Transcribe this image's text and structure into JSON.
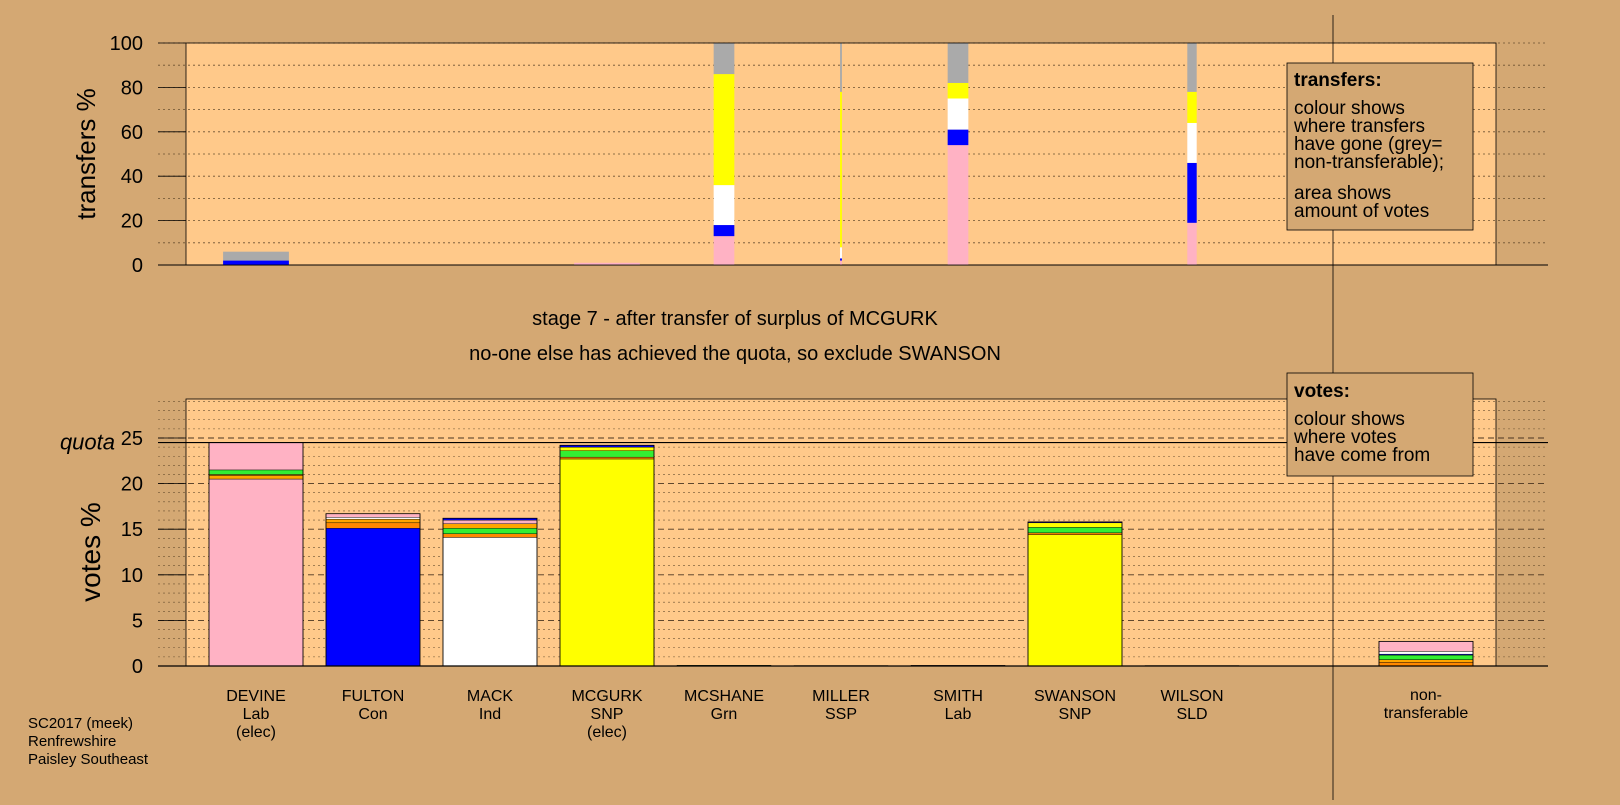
{
  "colors": {
    "page_bg": "#d4a873",
    "plot_bg": "#ffc98a",
    "Lab": "#ffb2c4",
    "Con": "#0000ff",
    "Ind": "#ffffff",
    "SNP": "#ffff00",
    "Grn": "#33ee33",
    "SSP": "#ff8800",
    "SLD": "#ffa500",
    "non_transferable": "#aaaaaa"
  },
  "chart_data": {
    "type": "bar",
    "title": "stage 7 - after transfer of surplus of MCGURK",
    "subtitle": "no-one else has achieved the quota, so exclude SWANSON",
    "footer": [
      "SC2017 (meek)",
      "Renfrewshire",
      "Paisley Southeast"
    ],
    "candidates": [
      {
        "name": "DEVINE",
        "party": "Lab",
        "status": "(elec)"
      },
      {
        "name": "FULTON",
        "party": "Con",
        "status": ""
      },
      {
        "name": "MACK",
        "party": "Ind",
        "status": ""
      },
      {
        "name": "MCGURK",
        "party": "SNP",
        "status": "(elec)"
      },
      {
        "name": "MCSHANE",
        "party": "Grn",
        "status": ""
      },
      {
        "name": "MILLER",
        "party": "SSP",
        "status": ""
      },
      {
        "name": "SMITH",
        "party": "Lab",
        "status": ""
      },
      {
        "name": "SWANSON",
        "party": "SNP",
        "status": ""
      },
      {
        "name": "WILSON",
        "party": "SLD",
        "status": ""
      }
    ],
    "non_transferable_label": [
      "non-",
      "transferable"
    ],
    "transfers_chart": {
      "ylabel": "transfers %",
      "ylim": [
        0,
        100
      ],
      "yticks": [
        0,
        20,
        40,
        60,
        80,
        100
      ],
      "legend": {
        "title": "transfers:",
        "lines1": [
          "colour shows",
          "where transfers",
          "have gone (grey=",
          "non-transferable);"
        ],
        "lines2": [
          "area shows",
          "amount of votes"
        ]
      },
      "series": [
        {
          "from": "DEVINE",
          "share": 0.7,
          "segments": [
            {
              "party": "Con",
              "value": 2
            },
            {
              "party": "non_transferable",
              "value": 4
            }
          ]
        },
        {
          "from": "MCGURK",
          "share": 0.7,
          "segments": [
            {
              "party": "Lab",
              "value": 1
            }
          ]
        },
        {
          "from": "MCSHANE",
          "share": 0.22,
          "segments": [
            {
              "party": "Lab",
              "value": 13
            },
            {
              "party": "Con",
              "value": 5
            },
            {
              "party": "Ind",
              "value": 18
            },
            {
              "party": "SNP",
              "value": 50
            },
            {
              "party": "non_transferable",
              "value": 14
            }
          ]
        },
        {
          "from": "MILLER",
          "share": 0.02,
          "segments": [
            {
              "party": "Lab",
              "value": 2
            },
            {
              "party": "Con",
              "value": 1
            },
            {
              "party": "Ind",
              "value": 5
            },
            {
              "party": "SNP",
              "value": 70
            },
            {
              "party": "non_transferable",
              "value": 22
            }
          ]
        },
        {
          "from": "SMITH",
          "share": 0.22,
          "segments": [
            {
              "party": "Lab",
              "value": 54
            },
            {
              "party": "Con",
              "value": 7
            },
            {
              "party": "Ind",
              "value": 14
            },
            {
              "party": "SNP",
              "value": 7
            },
            {
              "party": "non_transferable",
              "value": 18
            }
          ]
        },
        {
          "from": "WILSON",
          "share": 0.1,
          "segments": [
            {
              "party": "Lab",
              "value": 19
            },
            {
              "party": "Con",
              "value": 27
            },
            {
              "party": "Ind",
              "value": 18
            },
            {
              "party": "SNP",
              "value": 14
            },
            {
              "party": "non_transferable",
              "value": 22
            }
          ]
        }
      ]
    },
    "votes_chart": {
      "ylabel": "votes %",
      "ylim": [
        0,
        30
      ],
      "yticks": [
        0,
        5,
        10,
        15,
        20,
        25
      ],
      "quota": 24.5,
      "quota_label": "quota",
      "legend": {
        "title": "votes:",
        "lines": [
          "colour shows",
          "where votes",
          "have come from"
        ]
      },
      "stacks": [
        {
          "candidate": "DEVINE",
          "segments": [
            {
              "party": "Lab",
              "value": 20.5
            },
            {
              "party": "SLD",
              "value": 0.4
            },
            {
              "party": "SSP",
              "value": 0.1
            },
            {
              "party": "Grn",
              "value": 0.5
            },
            {
              "party": "Lab",
              "value": 3.0
            }
          ]
        },
        {
          "candidate": "FULTON",
          "segments": [
            {
              "party": "Con",
              "value": 15.1
            },
            {
              "party": "SSP",
              "value": 0.6
            },
            {
              "party": "SLD",
              "value": 0.4
            },
            {
              "party": "Ind",
              "value": 0.2
            },
            {
              "party": "Lab",
              "value": 0.4
            }
          ]
        },
        {
          "candidate": "MACK",
          "segments": [
            {
              "party": "Ind",
              "value": 14.1
            },
            {
              "party": "SSP",
              "value": 0.4
            },
            {
              "party": "Grn",
              "value": 0.6
            },
            {
              "party": "SLD",
              "value": 0.5
            },
            {
              "party": "Lab",
              "value": 0.4
            },
            {
              "party": "Con",
              "value": 0.2
            }
          ]
        },
        {
          "candidate": "MCGURK",
          "segments": [
            {
              "party": "SNP",
              "value": 22.7
            },
            {
              "party": "SSP",
              "value": 0.2
            },
            {
              "party": "Grn",
              "value": 0.7
            },
            {
              "party": "SNP",
              "value": 0.4
            },
            {
              "party": "Con",
              "value": 0.2
            }
          ]
        },
        {
          "candidate": "MCSHANE",
          "segments": [
            {
              "party": "Grn",
              "value": 0.08
            }
          ]
        },
        {
          "candidate": "MILLER",
          "segments": [
            {
              "party": "SSP",
              "value": 0.05
            }
          ]
        },
        {
          "candidate": "SMITH",
          "segments": [
            {
              "party": "Lab",
              "value": 0.08
            }
          ]
        },
        {
          "candidate": "SWANSON",
          "segments": [
            {
              "party": "SNP",
              "value": 14.4
            },
            {
              "party": "SSP",
              "value": 0.2
            },
            {
              "party": "Grn",
              "value": 0.6
            },
            {
              "party": "SNP",
              "value": 0.5
            },
            {
              "party": "Con",
              "value": 0.1
            }
          ]
        },
        {
          "candidate": "WILSON",
          "segments": [
            {
              "party": "SLD",
              "value": 0.05
            }
          ]
        },
        {
          "candidate": "non-transferable",
          "segments": [
            {
              "party": "SSP",
              "value": 0.4
            },
            {
              "party": "SLD",
              "value": 0.3
            },
            {
              "party": "Grn",
              "value": 0.5
            },
            {
              "party": "Con",
              "value": 0.1
            },
            {
              "party": "Ind",
              "value": 0.3
            },
            {
              "party": "Lab",
              "value": 1.1
            }
          ]
        }
      ]
    }
  }
}
